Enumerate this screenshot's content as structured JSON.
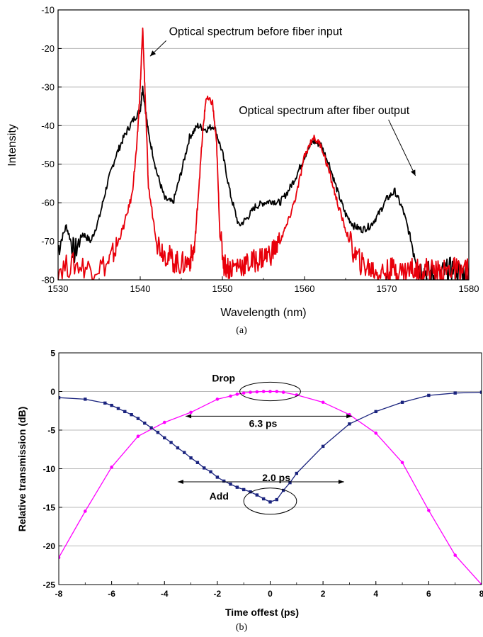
{
  "chart_data": [
    {
      "id": "a",
      "type": "line",
      "caption": "(a)",
      "xlabel": "Wavelength (nm)",
      "ylabel": "Intensity",
      "xlim": [
        1530,
        1580
      ],
      "ylim": [
        -80,
        -10
      ],
      "xticks": [
        1530,
        1540,
        1550,
        1560,
        1570,
        1580
      ],
      "yticks": [
        -80,
        -70,
        -60,
        -50,
        -40,
        -30,
        -20,
        -10
      ],
      "grid": "horizontal",
      "annotations": [
        {
          "text": "Optical spectrum before fiber input",
          "x": 1543.5,
          "y": -16.5,
          "arrow_to": [
            1541.2,
            -22
          ]
        },
        {
          "text": "Optical spectrum after fiber output",
          "x": 1552,
          "y": -37,
          "arrow_to": [
            1573.5,
            -53
          ]
        }
      ],
      "series": [
        {
          "color": "#000000",
          "x": [
            1530,
            1531,
            1532,
            1533,
            1534,
            1535,
            1536,
            1537,
            1538,
            1539,
            1540,
            1540.3,
            1541,
            1542,
            1543,
            1544,
            1545,
            1546,
            1547,
            1548,
            1549,
            1550,
            1551,
            1552,
            1553,
            1554,
            1555,
            1556,
            1557,
            1558,
            1559,
            1560,
            1561,
            1562,
            1563,
            1564,
            1565,
            1566,
            1567,
            1568,
            1569,
            1570,
            1571,
            1572,
            1573,
            1574,
            1575,
            1576,
            1577,
            1578,
            1579,
            1580
          ],
          "y": [
            -72,
            -66,
            -73,
            -68,
            -70,
            -64,
            -55,
            -48,
            -43,
            -39,
            -36,
            -30,
            -42,
            -52,
            -59,
            -60,
            -52,
            -43,
            -40,
            -41,
            -40,
            -47,
            -58,
            -66,
            -64,
            -61,
            -60,
            -59.5,
            -60,
            -57,
            -53,
            -48,
            -44,
            -45,
            -50,
            -57,
            -63,
            -66,
            -67,
            -66,
            -63,
            -59,
            -57,
            -62,
            -70,
            -77,
            -78,
            -79,
            -78,
            -77,
            -78,
            -79
          ]
        },
        {
          "color": "#e8000b",
          "x": [
            1530,
            1532,
            1534,
            1536,
            1537,
            1538,
            1539,
            1539.6,
            1540,
            1540.3,
            1540.6,
            1541,
            1542,
            1543,
            1544,
            1545,
            1546,
            1546.6,
            1547,
            1547.6,
            1548,
            1548.8,
            1549.3,
            1549.7,
            1550.2,
            1551,
            1552,
            1553,
            1554,
            1555,
            1556,
            1557,
            1558,
            1559,
            1560,
            1561,
            1562,
            1563,
            1564,
            1565,
            1566,
            1567,
            1568,
            1569,
            1570,
            1571,
            1572,
            1573,
            1574,
            1575,
            1576,
            1577,
            1578,
            1579,
            1580
          ],
          "y": [
            -77,
            -76,
            -77,
            -76,
            -72,
            -66,
            -58,
            -45,
            -30,
            -15,
            -32,
            -56,
            -70,
            -73,
            -75,
            -76,
            -75,
            -72,
            -60,
            -42,
            -33,
            -34,
            -45,
            -68,
            -76,
            -77,
            -76,
            -76,
            -75,
            -74,
            -73,
            -70,
            -65,
            -58,
            -48,
            -43,
            -45,
            -52,
            -60,
            -67,
            -73,
            -76,
            -77,
            -78,
            -78,
            -77,
            -78,
            -77,
            -78,
            -77,
            -78,
            -78,
            -77,
            -78,
            -77
          ]
        }
      ]
    },
    {
      "id": "b",
      "type": "line",
      "caption": "(b)",
      "xlabel": "Time offest (ps)",
      "ylabel": "Relative transmission (dB)",
      "xlim": [
        -8,
        8
      ],
      "ylim": [
        -25,
        5
      ],
      "xticks": [
        -8,
        -6,
        -4,
        -2,
        0,
        2,
        4,
        6,
        8
      ],
      "yticks": [
        -25,
        -20,
        -15,
        -10,
        -5,
        0,
        5
      ],
      "grid": "horizontal",
      "annotations": [
        {
          "text": "Drop",
          "x": -2.2,
          "y": 1.3,
          "ellipse": {
            "cx": 0,
            "cy": 0,
            "rx": 1.15,
            "ry": 1.2
          }
        },
        {
          "text": "6.3 ps",
          "x": -0.8,
          "y": -4.6,
          "arrow": {
            "x1": -3.2,
            "x2": 3.1,
            "y": -3.2
          }
        },
        {
          "text": "2.0 ps",
          "x": -0.3,
          "y": -11.6,
          "arrow": {
            "x1": -3.5,
            "x2": 2.8,
            "y": -11.7
          }
        },
        {
          "text": "Add",
          "x": -2.3,
          "y": -14.0,
          "ellipse": {
            "cx": 0,
            "cy": -14.2,
            "rx": 1.0,
            "ry": 1.7
          }
        }
      ],
      "series": [
        {
          "name": "Drop",
          "color": "#ff00ff",
          "marker": "circle",
          "x": [
            -8,
            -7,
            -6,
            -5,
            -4,
            -3,
            -2,
            -1.5,
            -1.25,
            -1,
            -0.75,
            -0.5,
            -0.25,
            0,
            0.25,
            0.5,
            1,
            2,
            3,
            4,
            5,
            6,
            7,
            8
          ],
          "y": [
            -21.5,
            -15.5,
            -9.8,
            -5.8,
            -4.0,
            -2.7,
            -1.0,
            -0.6,
            -0.35,
            -0.2,
            -0.1,
            -0.05,
            0,
            0,
            0,
            -0.1,
            -0.45,
            -1.4,
            -3.0,
            -5.4,
            -9.2,
            -15.4,
            -21.2,
            -25
          ]
        },
        {
          "name": "Add",
          "color": "#1a237e",
          "marker": "square",
          "x": [
            -8,
            -7,
            -6.25,
            -6,
            -5.75,
            -5.5,
            -5.25,
            -5,
            -4.75,
            -4.5,
            -4.25,
            -4,
            -3.75,
            -3.5,
            -3.25,
            -3,
            -2.75,
            -2.5,
            -2.25,
            -2,
            -1.75,
            -1.5,
            -1.25,
            -1,
            -0.75,
            -0.5,
            -0.25,
            0,
            0.25,
            0.5,
            0.75,
            1,
            2,
            3,
            4,
            5,
            6,
            7,
            8
          ],
          "y": [
            -0.8,
            -1.0,
            -1.5,
            -1.8,
            -2.2,
            -2.6,
            -3.0,
            -3.5,
            -4.1,
            -4.7,
            -5.3,
            -6.0,
            -6.6,
            -7.3,
            -7.9,
            -8.6,
            -9.2,
            -9.9,
            -10.4,
            -11.1,
            -11.6,
            -12.0,
            -12.4,
            -12.7,
            -13.0,
            -13.4,
            -13.9,
            -14.3,
            -14.0,
            -12.8,
            -11.8,
            -10.6,
            -7.1,
            -4.2,
            -2.6,
            -1.4,
            -0.5,
            -0.2,
            -0.1
          ]
        }
      ]
    }
  ]
}
